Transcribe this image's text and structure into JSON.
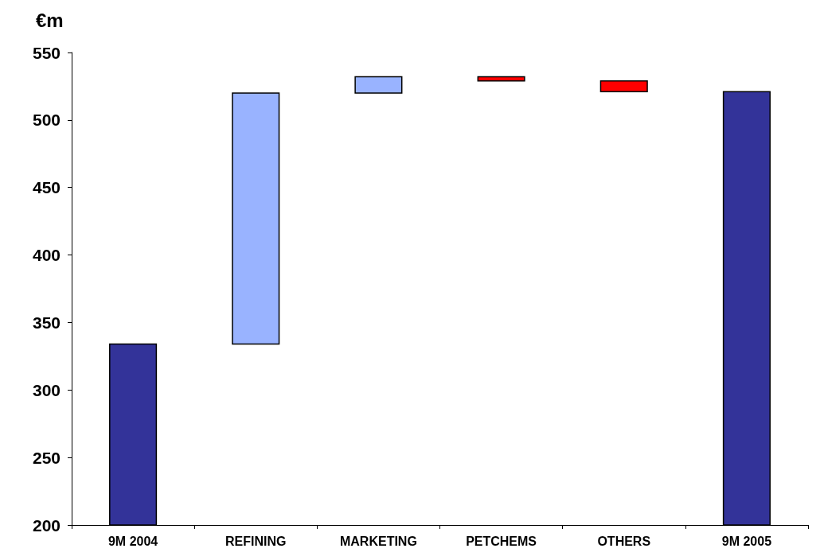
{
  "chart_data": {
    "type": "bar",
    "ylabel": "€m",
    "categories": [
      "9M 2004",
      "REFINING",
      "MARKETING",
      "PETCHEMS",
      "OTHERS",
      "9M 2005"
    ],
    "values": [
      334,
      186,
      12,
      -3,
      -8,
      521
    ],
    "base": [
      null,
      334,
      520,
      532,
      529,
      null
    ],
    "colors": [
      "#333399",
      "#99b3ff",
      "#99b3ff",
      "#ff0000",
      "#ff0000",
      "#333399"
    ],
    "ylim": [
      200,
      550
    ],
    "yticks": [
      200,
      250,
      300,
      350,
      400,
      450,
      500,
      550
    ],
    "grid": false
  }
}
